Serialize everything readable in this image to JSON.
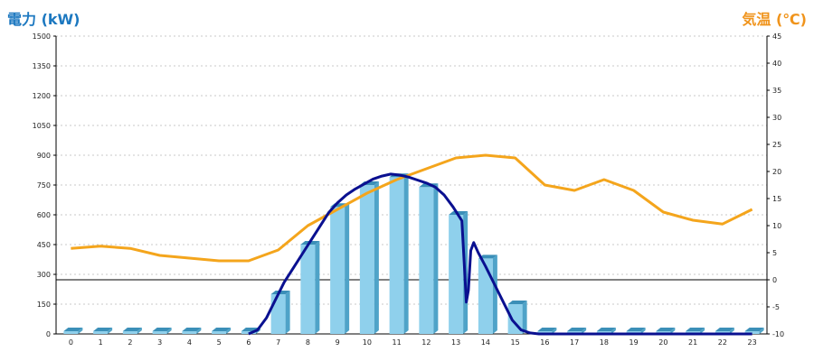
{
  "chart_data": {
    "type": "bar+line",
    "left_axis_title": "電力 (kW)",
    "right_axis_title": "気温 (℃)",
    "colors": {
      "left_title": "#1c78c0",
      "right_title": "#f0941c",
      "bars_front": "#8fd0ec",
      "bars_side": "#4fa3c8",
      "bars_top": "#3b8fb8",
      "power_line": "#0a1090",
      "temp_line": "#f4a51c",
      "grid": "#c8c8c8",
      "zero_line": "#000000"
    },
    "x_categories": [
      "0",
      "1",
      "2",
      "3",
      "4",
      "5",
      "6",
      "7",
      "8",
      "9",
      "10",
      "11",
      "12",
      "13",
      "14",
      "15",
      "16",
      "17",
      "18",
      "19",
      "20",
      "21",
      "22",
      "23"
    ],
    "left_axis": {
      "min": 0,
      "max": 1500,
      "ticks": [
        "0",
        "150",
        "300",
        "450",
        "600",
        "750",
        "900",
        "1050",
        "1200",
        "1350",
        "1500"
      ]
    },
    "right_axis": {
      "min": -10,
      "max": 45,
      "ticks": [
        "-10",
        "-5",
        "0",
        "5",
        "10",
        "15",
        "20",
        "25",
        "30",
        "35",
        "40",
        "45"
      ]
    },
    "bar_values_kw": [
      0,
      0,
      0,
      0,
      0,
      0,
      5,
      200,
      450,
      640,
      750,
      790,
      740,
      600,
      380,
      150,
      5,
      0,
      0,
      0,
      0,
      0,
      0,
      0
    ],
    "power_line_kw": [
      [
        6.0,
        0
      ],
      [
        6.3,
        20
      ],
      [
        6.6,
        80
      ],
      [
        6.9,
        170
      ],
      [
        7.2,
        260
      ],
      [
        7.5,
        330
      ],
      [
        7.8,
        400
      ],
      [
        8.1,
        470
      ],
      [
        8.4,
        540
      ],
      [
        8.7,
        610
      ],
      [
        9.0,
        660
      ],
      [
        9.3,
        700
      ],
      [
        9.6,
        730
      ],
      [
        9.9,
        755
      ],
      [
        10.2,
        780
      ],
      [
        10.5,
        795
      ],
      [
        10.8,
        805
      ],
      [
        11.1,
        800
      ],
      [
        11.4,
        790
      ],
      [
        11.7,
        775
      ],
      [
        12.0,
        760
      ],
      [
        12.3,
        740
      ],
      [
        12.6,
        700
      ],
      [
        12.9,
        640
      ],
      [
        13.2,
        570
      ],
      [
        13.3,
        300
      ],
      [
        13.35,
        160
      ],
      [
        13.42,
        220
      ],
      [
        13.5,
        420
      ],
      [
        13.6,
        460
      ],
      [
        13.75,
        410
      ],
      [
        14.0,
        340
      ],
      [
        14.3,
        250
      ],
      [
        14.6,
        160
      ],
      [
        14.9,
        70
      ],
      [
        15.2,
        20
      ],
      [
        15.5,
        5
      ],
      [
        15.8,
        0
      ],
      [
        23.0,
        0
      ]
    ],
    "temperature_c": [
      5.8,
      6.2,
      5.8,
      4.5,
      4.0,
      3.5,
      3.5,
      5.5,
      10.0,
      13.0,
      16.0,
      18.5,
      20.5,
      22.5,
      23.0,
      22.5,
      17.5,
      16.5,
      18.5,
      16.5,
      12.5,
      11.0,
      10.3,
      13.0
    ],
    "grid": true,
    "legend": "none"
  }
}
